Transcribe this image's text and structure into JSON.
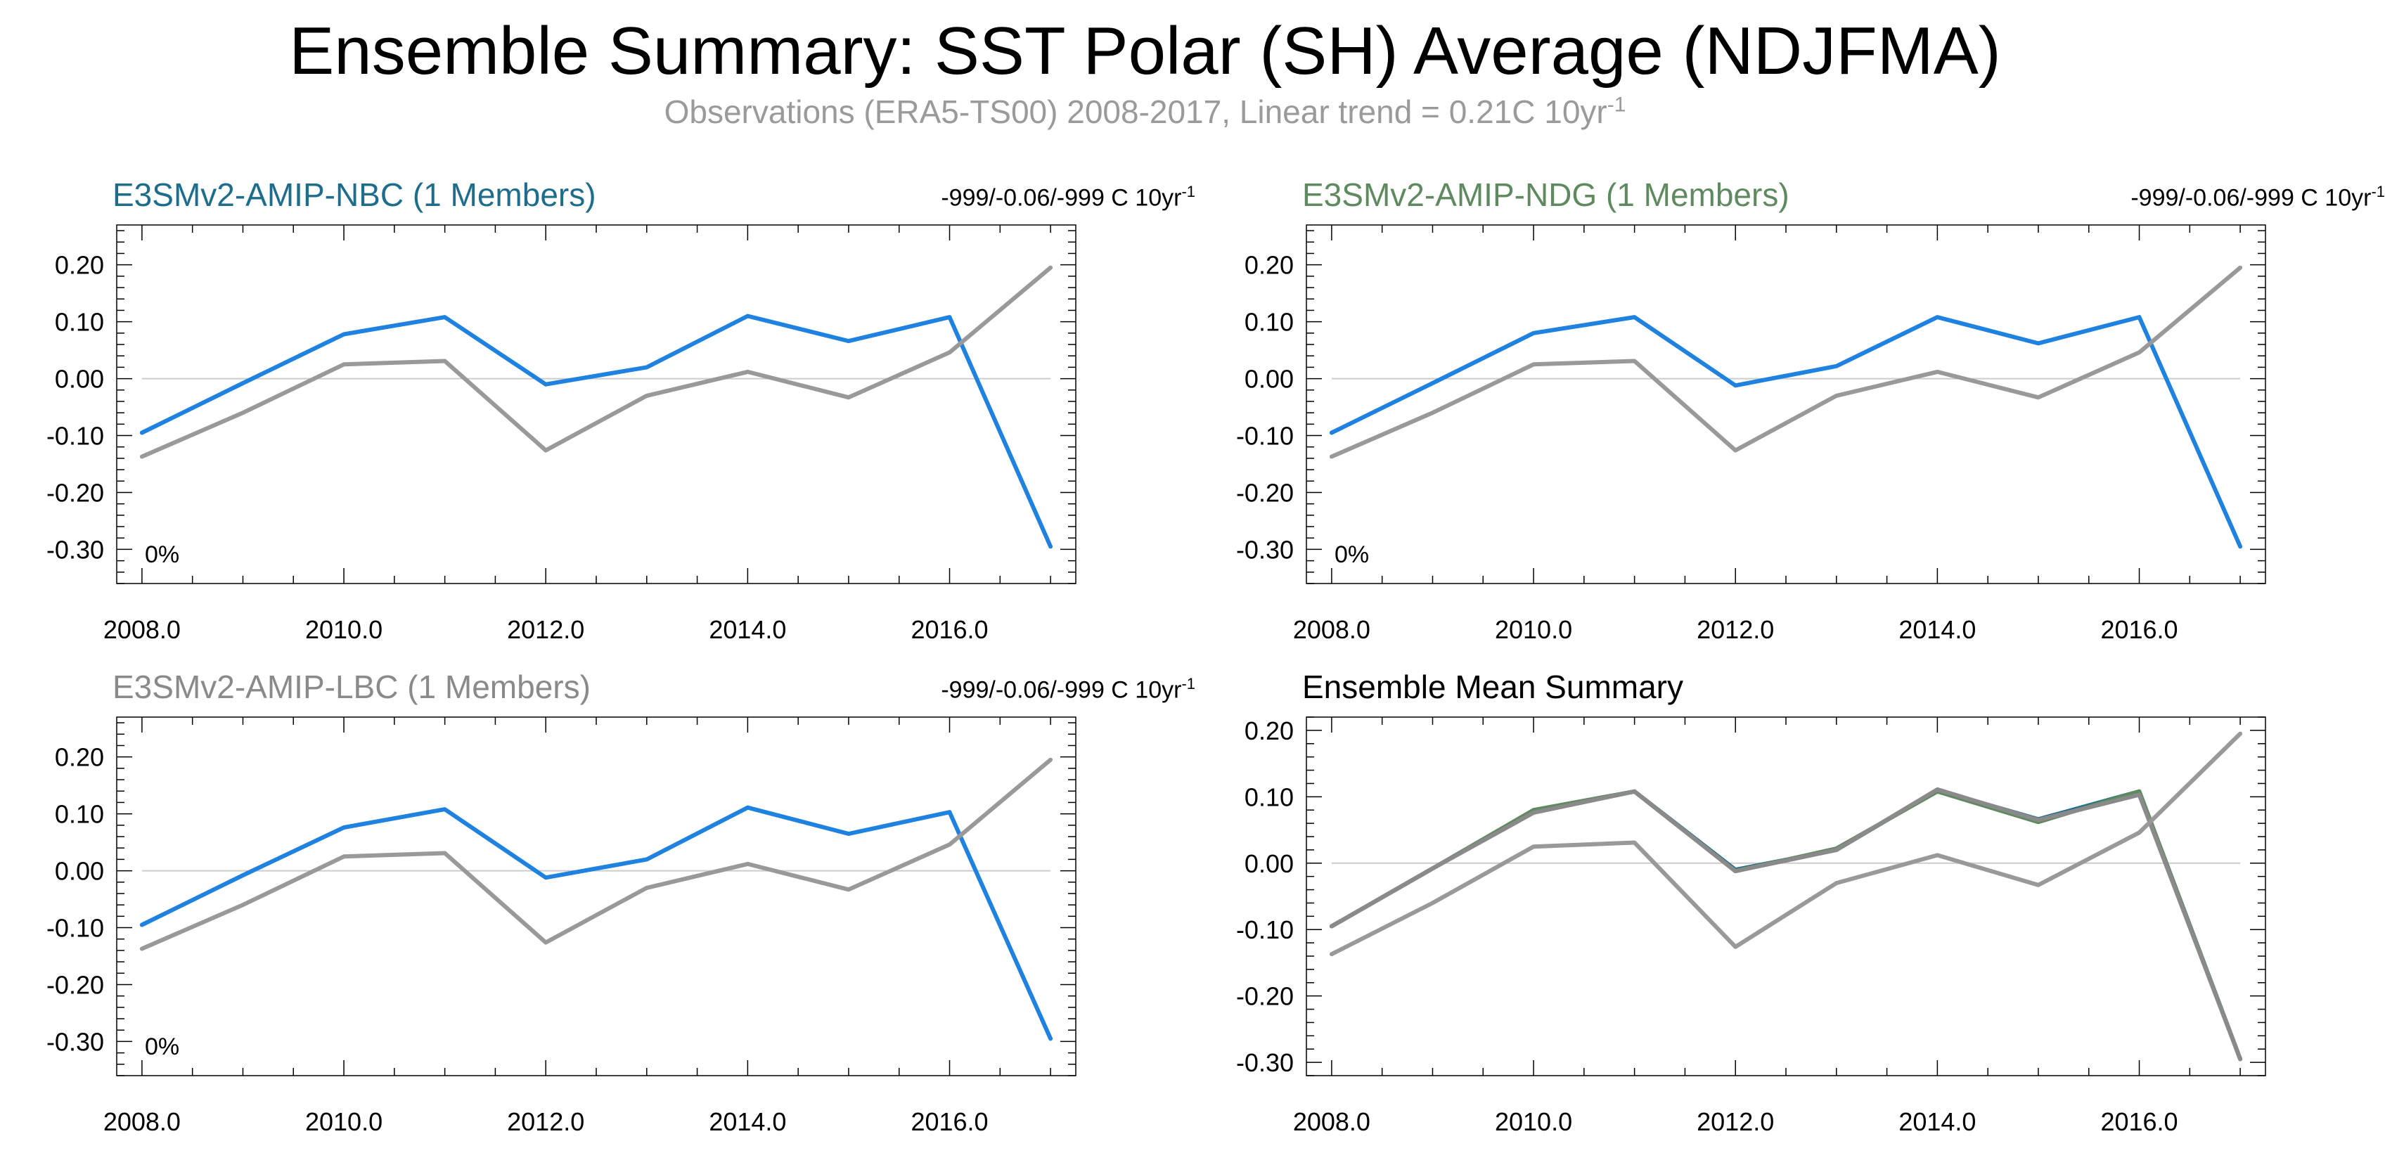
{
  "title": "Ensemble Summary: SST Polar (SH) Average (NDJFMA)",
  "subtitle": {
    "text": "Observations (ERA5-TS00) 2008-2017, Linear trend = 0.21C 10yr",
    "superscript": "-1",
    "color": "#9a9a9a"
  },
  "colors": {
    "model_line": "#1f82e0",
    "obs_line": "#999999",
    "ensemble_lines": [
      "#1e6d8c",
      "#5f8a5f",
      "#8a8a8a"
    ],
    "zero_line": "#cccccc",
    "axis": "#000000"
  },
  "panels": [
    {
      "title": "E3SMv2-AMIP-NBC (1 Members)",
      "title_color": "#1e6d8c",
      "trend": "-999/-0.06/-999 C 10yr",
      "trend_sup": "-1",
      "percent": "0%"
    },
    {
      "title": "E3SMv2-AMIP-NDG (1 Members)",
      "title_color": "#5f8a5f",
      "trend": "-999/-0.06/-999 C 10yr",
      "trend_sup": "-1",
      "percent": "0%"
    },
    {
      "title": "E3SMv2-AMIP-LBC (1 Members)",
      "title_color": "#8a8a8a",
      "trend": "-999/-0.06/-999 C 10yr",
      "trend_sup": "-1",
      "percent": "0%"
    },
    {
      "title": "Ensemble Mean Summary",
      "title_color": "#000000",
      "trend": "",
      "trend_sup": "",
      "percent": ""
    }
  ],
  "chart_data": [
    {
      "type": "line",
      "x": [
        2008,
        2009,
        2010,
        2011,
        2012,
        2013,
        2014,
        2015,
        2016,
        2017
      ],
      "x_tick_labels": [
        "2008.0",
        "2010.0",
        "2012.0",
        "2014.0",
        "2016.0"
      ],
      "y_tick_labels": [
        "0.20",
        "0.10",
        "0.00",
        "-0.10",
        "-0.20",
        "-0.30"
      ],
      "xlim": [
        2007.75,
        2017.25
      ],
      "ylim": [
        -0.36,
        0.27
      ],
      "series": [
        {
          "values": [
            -0.095,
            -0.008,
            0.078,
            0.108,
            -0.01,
            0.02,
            0.11,
            0.066,
            0.108,
            -0.295
          ],
          "color": "#1f82e0"
        },
        {
          "values": [
            -0.137,
            -0.06,
            0.025,
            0.031,
            -0.126,
            -0.03,
            0.012,
            -0.033,
            0.046,
            0.195
          ],
          "color": "#999999"
        }
      ]
    },
    {
      "type": "line",
      "x": [
        2008,
        2009,
        2010,
        2011,
        2012,
        2013,
        2014,
        2015,
        2016,
        2017
      ],
      "x_tick_labels": [
        "2008.0",
        "2010.0",
        "2012.0",
        "2014.0",
        "2016.0"
      ],
      "y_tick_labels": [
        "0.20",
        "0.10",
        "0.00",
        "-0.10",
        "-0.20",
        "-0.30"
      ],
      "xlim": [
        2007.75,
        2017.25
      ],
      "ylim": [
        -0.36,
        0.27
      ],
      "series": [
        {
          "values": [
            -0.095,
            -0.008,
            0.08,
            0.108,
            -0.012,
            0.022,
            0.108,
            0.062,
            0.108,
            -0.295
          ],
          "color": "#1f82e0"
        },
        {
          "values": [
            -0.137,
            -0.06,
            0.025,
            0.031,
            -0.126,
            -0.03,
            0.012,
            -0.033,
            0.046,
            0.195
          ],
          "color": "#999999"
        }
      ]
    },
    {
      "type": "line",
      "x": [
        2008,
        2009,
        2010,
        2011,
        2012,
        2013,
        2014,
        2015,
        2016,
        2017
      ],
      "x_tick_labels": [
        "2008.0",
        "2010.0",
        "2012.0",
        "2014.0",
        "2016.0"
      ],
      "y_tick_labels": [
        "0.20",
        "0.10",
        "0.00",
        "-0.10",
        "-0.20",
        "-0.30"
      ],
      "xlim": [
        2007.75,
        2017.25
      ],
      "ylim": [
        -0.36,
        0.27
      ],
      "series": [
        {
          "values": [
            -0.095,
            -0.008,
            0.076,
            0.108,
            -0.012,
            0.02,
            0.111,
            0.065,
            0.103,
            -0.295
          ],
          "color": "#1f82e0"
        },
        {
          "values": [
            -0.137,
            -0.06,
            0.025,
            0.031,
            -0.126,
            -0.03,
            0.012,
            -0.033,
            0.046,
            0.195
          ],
          "color": "#999999"
        }
      ]
    },
    {
      "type": "line",
      "x": [
        2008,
        2009,
        2010,
        2011,
        2012,
        2013,
        2014,
        2015,
        2016,
        2017
      ],
      "x_tick_labels": [
        "2008.0",
        "2010.0",
        "2012.0",
        "2014.0",
        "2016.0"
      ],
      "y_tick_labels": [
        "0.20",
        "0.10",
        "0.00",
        "-0.10",
        "-0.20",
        "-0.30"
      ],
      "xlim": [
        2007.75,
        2017.25
      ],
      "ylim": [
        -0.32,
        0.22
      ],
      "series": [
        {
          "values": [
            -0.095,
            -0.008,
            0.078,
            0.108,
            -0.01,
            0.02,
            0.11,
            0.066,
            0.108,
            -0.295
          ],
          "color": "#1e6d8c"
        },
        {
          "values": [
            -0.095,
            -0.008,
            0.08,
            0.108,
            -0.012,
            0.022,
            0.108,
            0.062,
            0.108,
            -0.295
          ],
          "color": "#5f8a5f"
        },
        {
          "values": [
            -0.095,
            -0.008,
            0.076,
            0.108,
            -0.012,
            0.02,
            0.111,
            0.065,
            0.103,
            -0.295
          ],
          "color": "#8a8a8a"
        },
        {
          "values": [
            -0.137,
            -0.06,
            0.025,
            0.031,
            -0.126,
            -0.03,
            0.012,
            -0.033,
            0.046,
            0.195
          ],
          "color": "#999999"
        }
      ]
    }
  ]
}
